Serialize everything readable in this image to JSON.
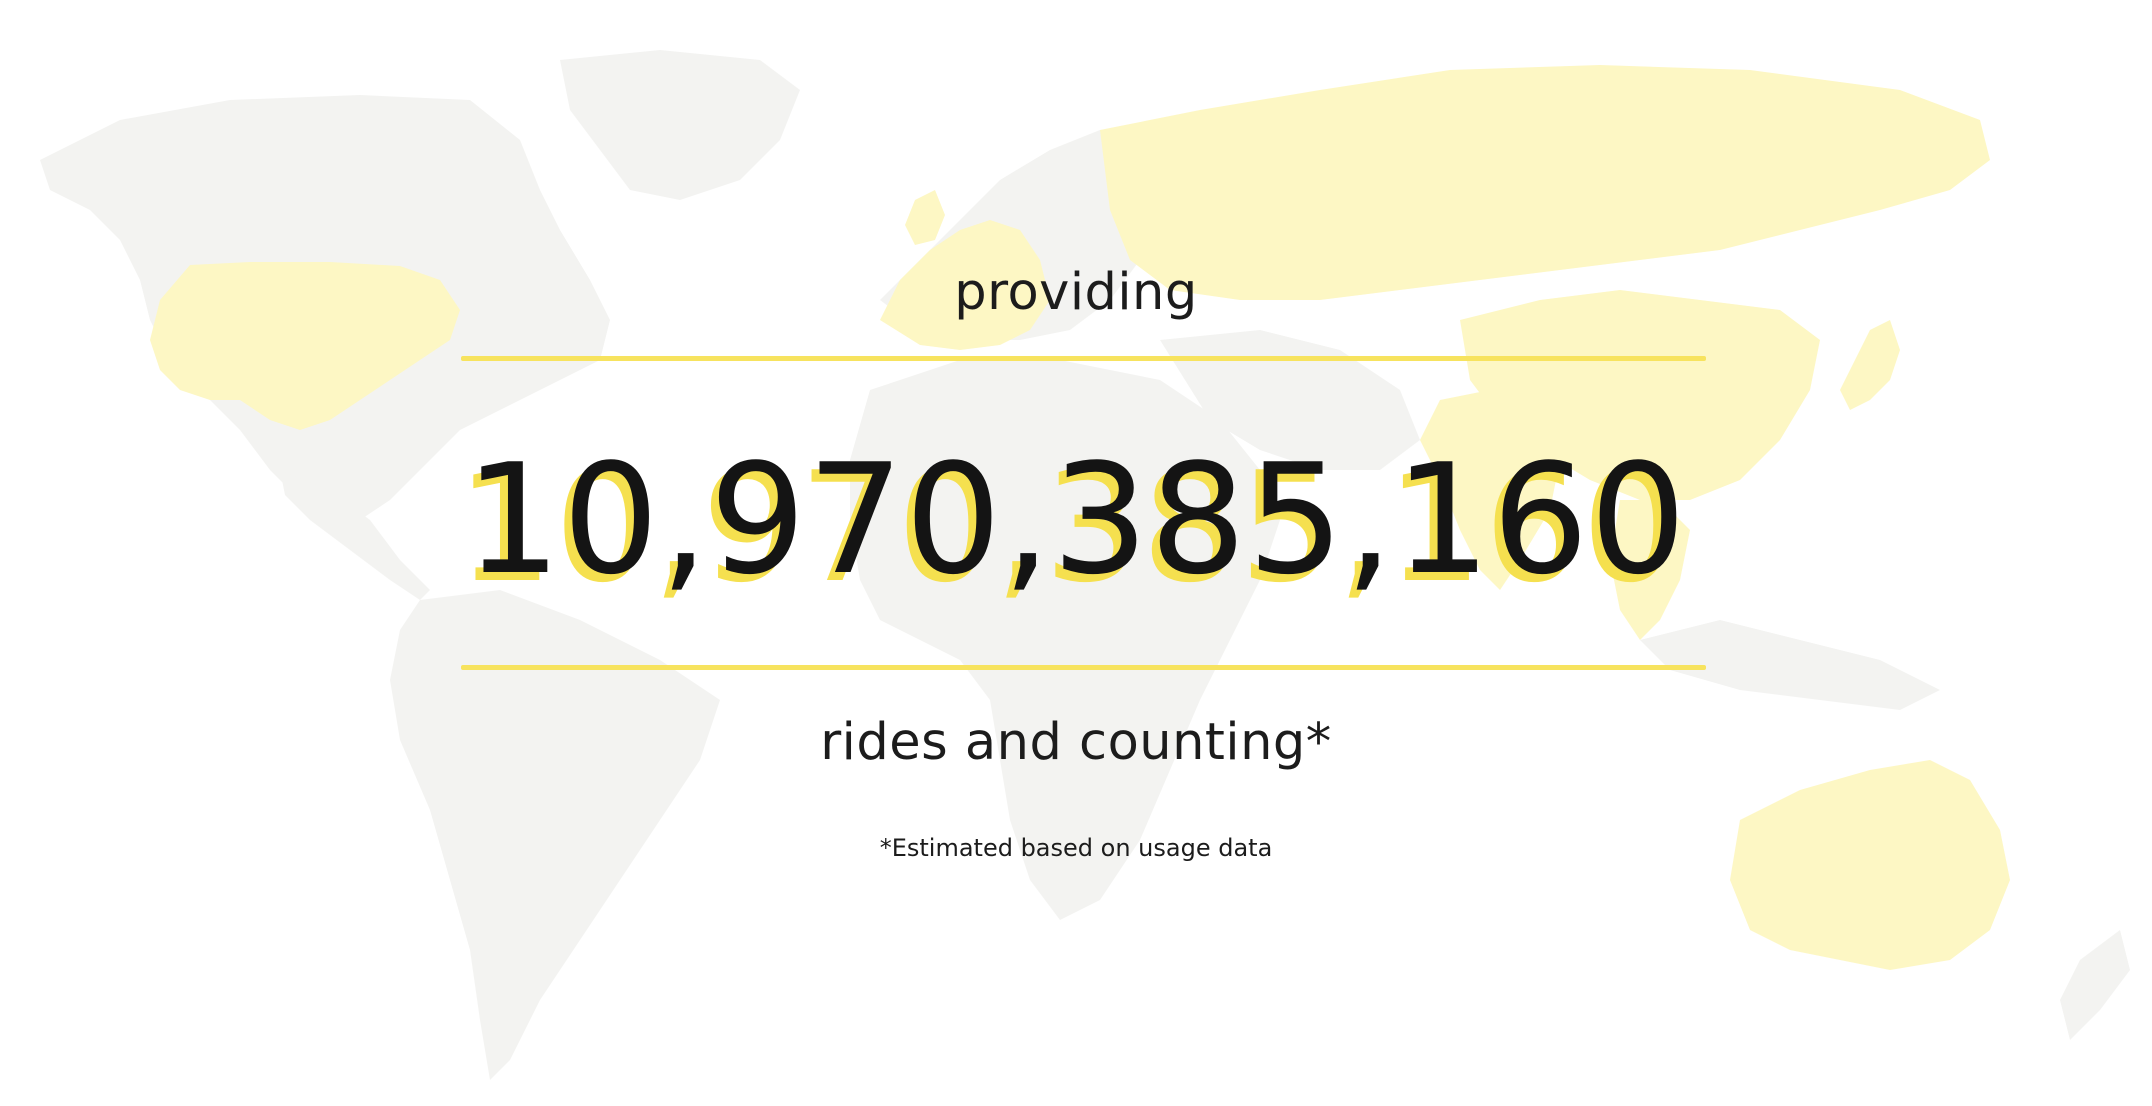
{
  "headline": {
    "lead": "providing",
    "count": "10,970,385,160",
    "tail": "rides and counting*"
  },
  "footnote": "*Estimated based on usage data",
  "background": {
    "map_icon": "world-map",
    "highlighted_regions": [
      "United States",
      "Europe",
      "Russia",
      "China",
      "India",
      "Southeast Asia",
      "Japan",
      "Australia"
    ],
    "colors": {
      "land": "#f3f3f1",
      "highlight": "#fdf7c4",
      "accent": "#f7e35e"
    }
  }
}
